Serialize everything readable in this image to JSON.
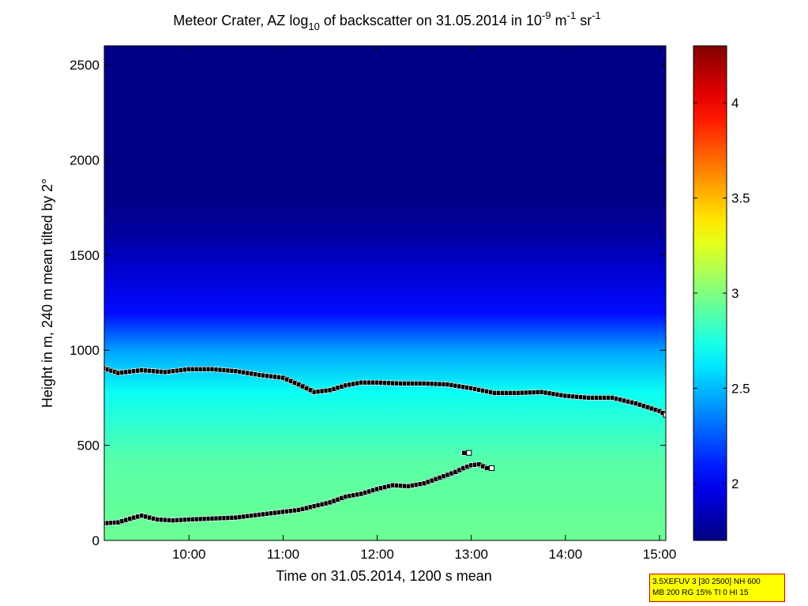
{
  "chart_data": {
    "type": "heatmap",
    "title": {
      "place": "Meteor Crater, AZ",
      "log": "log",
      "log_sub": "10",
      "middle": "of backscatter on 31.05.2014 in 10",
      "exp1": "-9",
      "m": "m",
      "exp2": "-1",
      "sr": "sr",
      "exp3": "-1"
    },
    "xlabel": "Time on 31.05.2014, 1200 s mean",
    "ylabel": "Height in m, 240 m mean tilted by 2°",
    "xlim": [
      "09:06",
      "15:04"
    ],
    "ylim": [
      0,
      2600
    ],
    "x_ticks": [
      "10:00",
      "11:00",
      "12:00",
      "13:00",
      "14:00",
      "15:00"
    ],
    "y_ticks": [
      "0",
      "500",
      "1000",
      "1500",
      "2000",
      "2500"
    ],
    "colorbar": {
      "range": [
        1.7,
        4.3
      ],
      "ticks": [
        "2",
        "2.5",
        "3",
        "3.5",
        "4"
      ],
      "colormap": "jet"
    },
    "field": {
      "description_values": "log10 backscatter per height band",
      "surface_value": 2.95,
      "mixed_layer_value": 2.7,
      "free_troposphere_value": 1.72
    },
    "series": [
      {
        "x": [
          "09:06",
          "09:15",
          "09:30",
          "09:45",
          "10:00",
          "10:15",
          "10:30",
          "10:45",
          "11:00",
          "11:10",
          "11:20",
          "11:30",
          "11:40",
          "11:50",
          "12:00",
          "12:15",
          "12:30",
          "12:45",
          "13:00",
          "13:15",
          "13:30",
          "13:45",
          "14:00",
          "14:15",
          "14:30",
          "14:45",
          "15:00",
          "15:04"
        ],
        "y": [
          905,
          880,
          895,
          885,
          900,
          900,
          890,
          870,
          855,
          820,
          780,
          790,
          815,
          830,
          830,
          825,
          825,
          820,
          800,
          775,
          775,
          780,
          760,
          750,
          750,
          720,
          680,
          660
        ]
      },
      {
        "x": [
          "09:06",
          "09:15",
          "09:25",
          "09:30",
          "09:40",
          "09:50",
          "10:00",
          "10:15",
          "10:30",
          "10:45",
          "11:00",
          "11:10",
          "11:20",
          "11:30",
          "11:40",
          "11:50",
          "12:00",
          "12:10",
          "12:20",
          "12:30",
          "12:40",
          "12:50",
          "12:55",
          "13:00",
          "13:05",
          "13:10",
          "13:13"
        ],
        "y": [
          90,
          95,
          120,
          130,
          110,
          105,
          110,
          115,
          120,
          135,
          150,
          160,
          180,
          200,
          230,
          245,
          270,
          290,
          285,
          300,
          330,
          360,
          380,
          395,
          400,
          380,
          380
        ]
      },
      {
        "x": [
          "12:57"
        ],
        "y": [
          460
        ]
      }
    ]
  },
  "annotation": {
    "line1": "3.5XEFUV 3 [30 2500] NH 600",
    "line2": "MB 200 RG 15% TI 0 HI 15"
  }
}
